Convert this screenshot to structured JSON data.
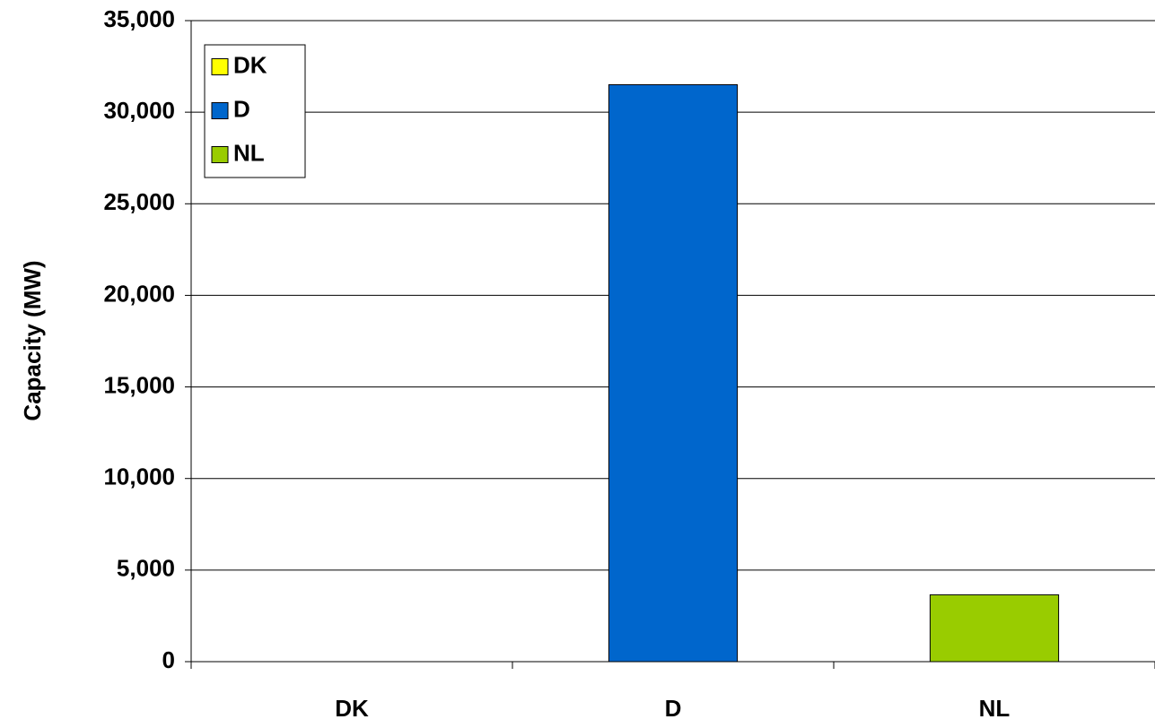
{
  "chart_data": {
    "type": "bar",
    "y_label": "Capacity (MW)",
    "categories": [
      "DK",
      "D",
      "NL"
    ],
    "series": [
      {
        "name": "DK",
        "color": "#ffff00",
        "values": [
          0,
          null,
          null
        ]
      },
      {
        "name": "D",
        "color": "#0066cc",
        "values": [
          null,
          31500,
          null
        ]
      },
      {
        "name": "NL",
        "color": "#99cc00",
        "values": [
          null,
          null,
          3650
        ]
      }
    ],
    "ylim": [
      0,
      35000
    ],
    "yticks": [
      0,
      {
        "value": 5000,
        "label": "5,000"
      },
      {
        "value": 10000,
        "label": "10,000"
      },
      {
        "value": 15000,
        "label": "15,000"
      },
      {
        "value": 20000,
        "label": "20,000"
      },
      {
        "value": 25000,
        "label": "25,000"
      },
      {
        "value": 30000,
        "label": "30,000"
      },
      {
        "value": 35000,
        "label": "35,000"
      }
    ],
    "grid": true,
    "legend": "upper left"
  }
}
